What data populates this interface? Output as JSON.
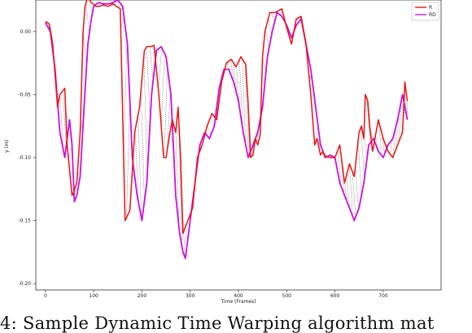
{
  "caption": "4: Sample Dynamic Time Warping algorithm mat",
  "chart_data": {
    "type": "line",
    "title": "",
    "xlabel": "Time (Frames)",
    "ylabel": "y (m)",
    "xlim": [
      -20,
      820
    ],
    "ylim": [
      -0.205,
      0.025
    ],
    "x_ticks": [
      0,
      100,
      200,
      300,
      400,
      500,
      600,
      700
    ],
    "x_tick_labels": [
      "0",
      "100",
      "200",
      "300",
      "400",
      "500",
      "600",
      "700"
    ],
    "y_ticks": [
      0.0,
      -0.05,
      -0.1,
      -0.15,
      -0.2
    ],
    "y_tick_labels": [
      "0.00",
      "-0.05",
      "-0.10",
      "-0.15",
      "-0.20"
    ],
    "grid": false,
    "legend_position": "top-right",
    "colors": {
      "series_a": "#ee1111",
      "series_b": "#cc11dd",
      "warp_links": "#222222"
    },
    "series": [
      {
        "name": "R",
        "x": [
          0,
          8,
          15,
          25,
          30,
          40,
          45,
          55,
          58,
          65,
          72,
          78,
          82,
          88,
          95,
          105,
          112,
          120,
          130,
          140,
          155,
          165,
          175,
          185,
          195,
          205,
          210,
          218,
          225,
          235,
          245,
          250,
          258,
          263,
          270,
          275,
          280,
          285,
          295,
          305,
          315,
          325,
          335,
          345,
          355,
          365,
          375,
          385,
          395,
          405,
          415,
          420,
          425,
          430,
          435,
          440,
          445,
          450,
          455,
          465,
          475,
          490,
          500,
          510,
          520,
          530,
          540,
          550,
          558,
          563,
          570,
          575,
          580,
          590,
          600,
          610,
          620,
          630,
          640,
          650,
          655,
          660,
          663,
          668,
          672,
          678,
          690,
          700,
          710,
          720,
          730,
          740,
          745,
          750
        ],
        "y": [
          0.008,
          0.006,
          -0.01,
          -0.06,
          -0.05,
          -0.045,
          -0.09,
          -0.13,
          -0.128,
          -0.12,
          -0.08,
          0.0,
          0.02,
          0.028,
          0.023,
          0.02,
          0.02,
          0.021,
          0.02,
          0.022,
          0.018,
          -0.15,
          -0.142,
          -0.08,
          -0.06,
          -0.015,
          -0.012,
          -0.012,
          -0.011,
          -0.05,
          -0.1,
          -0.1,
          -0.08,
          -0.07,
          -0.08,
          -0.06,
          -0.1,
          -0.16,
          -0.15,
          -0.14,
          -0.1,
          -0.09,
          -0.075,
          -0.065,
          -0.07,
          -0.04,
          -0.025,
          -0.022,
          -0.028,
          -0.02,
          -0.026,
          -0.057,
          -0.1,
          -0.098,
          -0.085,
          -0.09,
          -0.082,
          -0.02,
          0.0,
          0.015,
          0.015,
          0.018,
          0.003,
          -0.01,
          0.01,
          0.012,
          -0.01,
          -0.05,
          -0.09,
          -0.085,
          -0.098,
          -0.095,
          -0.099,
          -0.1,
          -0.1,
          -0.09,
          -0.12,
          -0.105,
          -0.115,
          -0.08,
          -0.075,
          -0.085,
          -0.05,
          -0.055,
          -0.075,
          -0.095,
          -0.07,
          -0.085,
          -0.095,
          -0.1,
          -0.09,
          -0.08,
          -0.04,
          -0.055
        ]
      },
      {
        "name": "RD",
        "x": [
          0,
          10,
          20,
          30,
          40,
          50,
          55,
          60,
          65,
          72,
          80,
          88,
          95,
          100,
          110,
          120,
          130,
          140,
          150,
          160,
          170,
          180,
          190,
          200,
          210,
          220,
          230,
          240,
          250,
          260,
          265,
          270,
          278,
          285,
          290,
          300,
          310,
          320,
          330,
          340,
          350,
          360,
          370,
          380,
          390,
          400,
          410,
          420,
          430,
          440,
          450,
          460,
          470,
          480,
          490,
          500,
          510,
          520,
          530,
          540,
          550,
          560,
          570,
          580,
          590,
          600,
          610,
          620,
          630,
          640,
          650,
          660,
          670,
          680,
          690,
          700,
          710,
          720,
          730,
          740,
          750
        ],
        "y": [
          0.007,
          0.0,
          -0.03,
          -0.08,
          -0.1,
          -0.07,
          -0.09,
          -0.135,
          -0.13,
          -0.115,
          -0.06,
          -0.01,
          0.01,
          0.02,
          0.023,
          0.022,
          0.022,
          0.023,
          0.025,
          0.02,
          -0.01,
          -0.1,
          -0.13,
          -0.15,
          -0.12,
          -0.05,
          -0.015,
          -0.012,
          -0.02,
          -0.05,
          -0.09,
          -0.13,
          -0.16,
          -0.175,
          -0.18,
          -0.15,
          -0.12,
          -0.09,
          -0.08,
          -0.085,
          -0.075,
          -0.045,
          -0.03,
          -0.03,
          -0.04,
          -0.055,
          -0.08,
          -0.1,
          -0.09,
          -0.08,
          -0.06,
          -0.02,
          0.0,
          0.015,
          0.012,
          0.005,
          -0.005,
          0.005,
          0.01,
          -0.01,
          -0.03,
          -0.06,
          -0.09,
          -0.1,
          -0.098,
          -0.1,
          -0.12,
          -0.13,
          -0.14,
          -0.15,
          -0.14,
          -0.12,
          -0.09,
          -0.085,
          -0.095,
          -0.1,
          -0.09,
          -0.085,
          -0.07,
          -0.05,
          -0.07
        ]
      }
    ]
  }
}
